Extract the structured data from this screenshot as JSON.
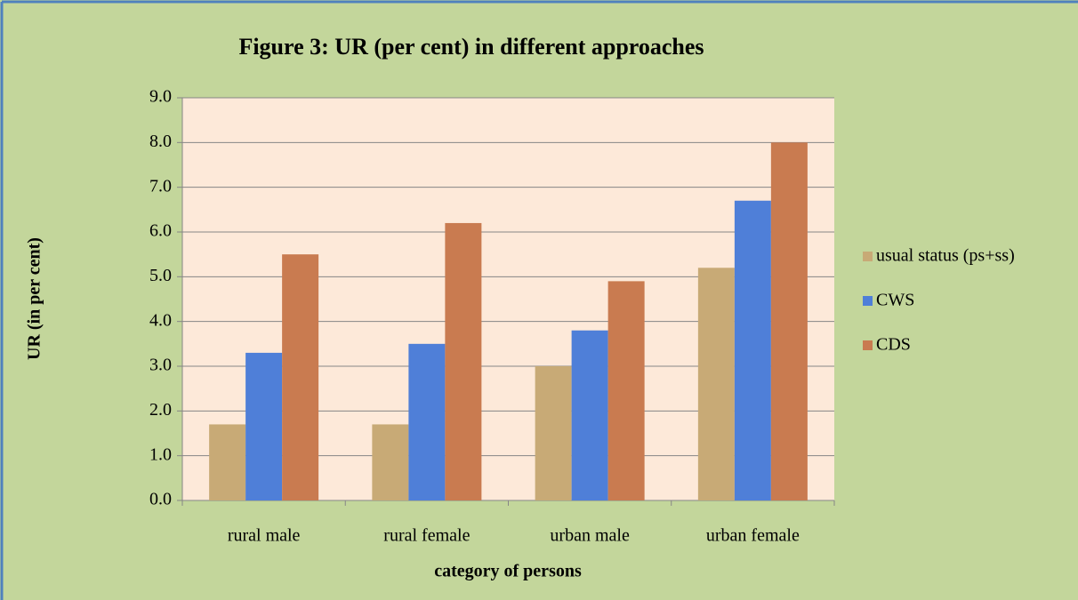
{
  "chart_data": {
    "type": "bar",
    "title": "Figure 3: UR (per cent) in different approaches",
    "y_axis_label": "UR (in per cent)",
    "x_axis_label": "category of persons",
    "categories": [
      "rural male",
      "rural female",
      "urban male",
      "urban female"
    ],
    "series": [
      {
        "name": "usual status (ps+ss)",
        "color": "#c8aa76",
        "values": [
          1.7,
          1.7,
          3.0,
          5.2
        ]
      },
      {
        "name": "CWS",
        "color": "#4f7fd8",
        "values": [
          3.3,
          3.5,
          3.8,
          6.7
        ]
      },
      {
        "name": "CDS",
        "color": "#c97b50",
        "values": [
          5.5,
          6.2,
          4.9,
          8.0
        ]
      }
    ],
    "ylim": [
      0,
      9
    ],
    "yticks": [
      {
        "value": 0,
        "label": "0.0"
      },
      {
        "value": 1,
        "label": "1.0"
      },
      {
        "value": 2,
        "label": "2.0"
      },
      {
        "value": 3,
        "label": "3.0"
      },
      {
        "value": 4,
        "label": "4.0"
      },
      {
        "value": 5,
        "label": "5.0"
      },
      {
        "value": 6,
        "label": "6.0"
      },
      {
        "value": 7,
        "label": "7.0"
      },
      {
        "value": 8,
        "label": "8.0"
      },
      {
        "value": 9,
        "label": "9.0"
      }
    ],
    "grid": true,
    "legend": "right"
  }
}
